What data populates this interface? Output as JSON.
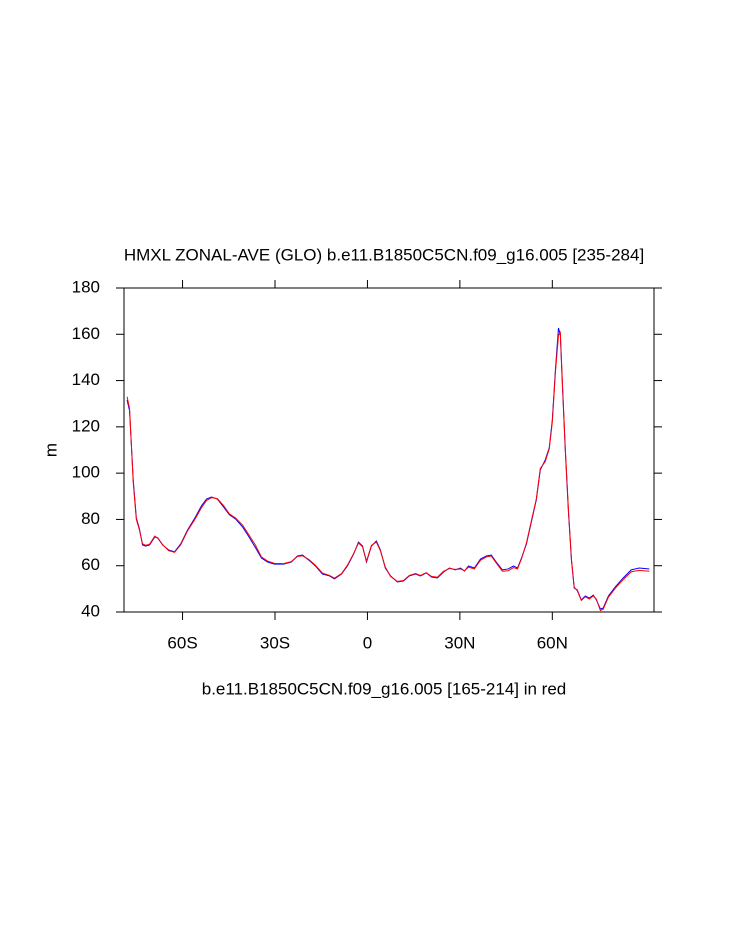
{
  "chart_data": {
    "type": "line",
    "title": "HMXL ZONAL-AVE (GLO) b.e11.B1850C5CN.f09_g16.005 [235-284]",
    "y_label": "m",
    "x_label": "b.e11.B1850C5CN.f09_g16.005 [165-214] in red",
    "x": [
      -78,
      -77.2,
      -76,
      -75,
      -74,
      -73,
      -72,
      -70.7,
      -69,
      -68,
      -66.5,
      -64.5,
      -62.6,
      -60.6,
      -58.4,
      -56,
      -53.8,
      -52.2,
      -50.6,
      -48.7,
      -46.7,
      -44.8,
      -42.8,
      -40.5,
      -38.6,
      -36.3,
      -34.4,
      -32.4,
      -30.2,
      -27.2,
      -24.7,
      -22.7,
      -21.1,
      -19.1,
      -16.9,
      -14.6,
      -12.3,
      -10.7,
      -8.4,
      -6.5,
      -4.5,
      -2.9,
      -1.6,
      -0.3,
      1.3,
      2.9,
      4.2,
      5.8,
      7.5,
      9.7,
      11.7,
      13.6,
      15.6,
      17.2,
      19.1,
      20.8,
      22.7,
      24.7,
      26.6,
      28.5,
      30.2,
      31.5,
      32.8,
      34.7,
      36.7,
      38.6,
      40.2,
      41.8,
      43.8,
      45.7,
      47.4,
      48.7,
      50,
      51.6,
      53.2,
      54.8,
      56.1,
      57.7,
      59,
      60,
      61,
      62,
      62.6,
      63.2,
      64.2,
      65.2,
      66.2,
      67.1,
      68.1,
      69.4,
      70.7,
      72,
      73.3,
      74.3,
      75.6,
      76.5,
      78.2,
      80.4,
      83,
      85.6,
      88.2,
      91.5
    ],
    "series": [
      {
        "color": "#0000ff",
        "values": [
          131.6,
          127,
          97,
          80.6,
          76,
          69,
          68.5,
          69,
          72.4,
          72,
          69,
          66.8,
          66,
          69.4,
          75.4,
          80.6,
          86,
          88.8,
          89.7,
          88.8,
          85.4,
          82,
          80.2,
          76.7,
          72.8,
          67.7,
          63.3,
          61.6,
          60.7,
          60.7,
          61.6,
          64.2,
          64.6,
          62.5,
          59.9,
          56.4,
          55.6,
          54.3,
          56.4,
          59.9,
          65,
          70.2,
          68.5,
          61.6,
          68.5,
          70.7,
          66.8,
          59,
          55.6,
          53,
          53.4,
          55.6,
          56.4,
          55.6,
          56.9,
          55.1,
          54.7,
          57.3,
          59,
          58.2,
          59,
          57.7,
          59.9,
          59,
          62.9,
          64.2,
          64.6,
          61.6,
          58.2,
          58.6,
          59.9,
          59,
          63.3,
          69.4,
          78.9,
          88.4,
          101.4,
          105.7,
          110.9,
          123,
          144.6,
          162.7,
          159.7,
          140.3,
          110,
          84,
          62.5,
          50.4,
          49.5,
          45.2,
          46.9,
          46,
          47.3,
          45.2,
          41.3,
          41.7,
          46.9,
          50.8,
          54.7,
          58.2,
          59,
          58.6
        ]
      },
      {
        "color": "#ff0000",
        "values": [
          133,
          128,
          96,
          80,
          75.5,
          69.5,
          68.8,
          69.3,
          72.8,
          71.8,
          69.2,
          66.5,
          65.8,
          69,
          75,
          80,
          85.2,
          88.2,
          89.4,
          89,
          86,
          82.4,
          80.6,
          77.5,
          73.6,
          68.8,
          63.8,
          62,
          61,
          60.9,
          61.8,
          64,
          64.3,
          62.8,
          60.2,
          56.8,
          55.8,
          54.6,
          56.6,
          60.2,
          65.2,
          69.8,
          68.2,
          62,
          68.8,
          70.2,
          66.5,
          59.4,
          55.4,
          53.2,
          53.6,
          55.8,
          56.6,
          55.8,
          57,
          55.4,
          55,
          57.6,
          58.8,
          58.4,
          58.6,
          57.8,
          59.4,
          58.6,
          62.4,
          63.8,
          64.2,
          61.2,
          57.6,
          57.8,
          59.2,
          58.6,
          63,
          69.8,
          79.4,
          88.8,
          102,
          105,
          110.4,
          122,
          143.5,
          159.5,
          160.8,
          141.5,
          111,
          85,
          63,
          50.8,
          49.2,
          45,
          46.6,
          45.6,
          47,
          45.5,
          40.6,
          41.2,
          46.4,
          50.2,
          54,
          57.4,
          58,
          57.6
        ]
      }
    ],
    "xlim": [
      -79,
      93
    ],
    "ylim": [
      40,
      180
    ],
    "xticks": [
      {
        "value": -60,
        "label": "60S"
      },
      {
        "value": -30,
        "label": "30S"
      },
      0,
      {
        "value": 30,
        "label": "30N"
      },
      {
        "value": 60,
        "label": "60N"
      }
    ],
    "yticks": [
      40,
      60,
      80,
      100,
      120,
      140,
      160,
      180
    ]
  }
}
